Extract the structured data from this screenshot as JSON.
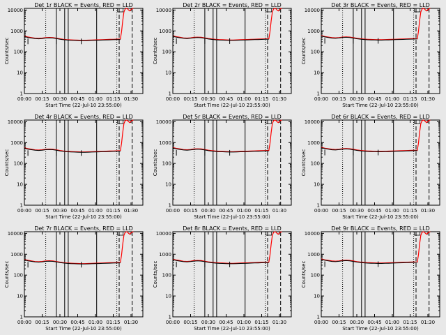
{
  "chart_data": [
    {
      "type": "line",
      "title": "Det 1r BLACK = Events, RED = LLD"
    },
    {
      "type": "line",
      "title": "Det 2r BLACK = Events, RED = LLD"
    },
    {
      "type": "line",
      "title": "Det 3r BLACK = Events, RED = LLD"
    },
    {
      "type": "line",
      "title": "Det 4r BLACK = Events, RED = LLD"
    },
    {
      "type": "line",
      "title": "Det 5r BLACK = Events, RED = LLD"
    },
    {
      "type": "line",
      "title": "Det 6r BLACK = Events, RED = LLD"
    },
    {
      "type": "line",
      "title": "Det 7r BLACK = Events, RED = LLD"
    },
    {
      "type": "line",
      "title": "Det 8r BLACK = Events, RED = LLD"
    },
    {
      "type": "line",
      "title": "Det 9r BLACK = Events, RED = LLD"
    }
  ],
  "shared": {
    "xlabel": "Start Time (22-Jul-10 23:55:00)",
    "ylabel": "Counts/sec",
    "xticks": [
      "00:00",
      "00:15",
      "00:30",
      "00:45",
      "01:00",
      "01:15",
      "01:30"
    ],
    "yticks": [
      "1",
      "10",
      "100",
      "1000",
      "10000"
    ],
    "ylim": [
      1,
      12000
    ],
    "xlim_min": [
      0,
      100
    ],
    "series": [
      {
        "name": "Events",
        "color": "#000000"
      },
      {
        "name": "LLD",
        "color": "#ff0000"
      }
    ],
    "events_minutes_x": [
      0,
      3,
      6,
      9,
      12,
      15,
      18,
      21,
      24,
      27,
      30,
      33,
      36,
      39,
      42,
      45,
      48,
      51,
      54,
      57,
      60,
      63,
      66,
      69,
      72,
      75,
      78,
      81
    ],
    "events_base": [
      550,
      500,
      470,
      440,
      430,
      445,
      470,
      480,
      470,
      440,
      410,
      390,
      375,
      365,
      360,
      355,
      350,
      350,
      355,
      360,
      365,
      370,
      375,
      380,
      385,
      390,
      395,
      400
    ],
    "lld_after_x": [
      81,
      82,
      83,
      84,
      85,
      86,
      87,
      88,
      89,
      90,
      91,
      92
    ],
    "lld_after_y": [
      400,
      900,
      3000,
      8000,
      11000,
      12000,
      11500,
      10000,
      9000,
      10500,
      11500,
      12000
    ],
    "vlines_dotted": [
      18,
      78
    ],
    "vlines_solid": [
      27,
      34,
      37,
      61
    ],
    "vlines_dashed": [
      80,
      91
    ]
  }
}
